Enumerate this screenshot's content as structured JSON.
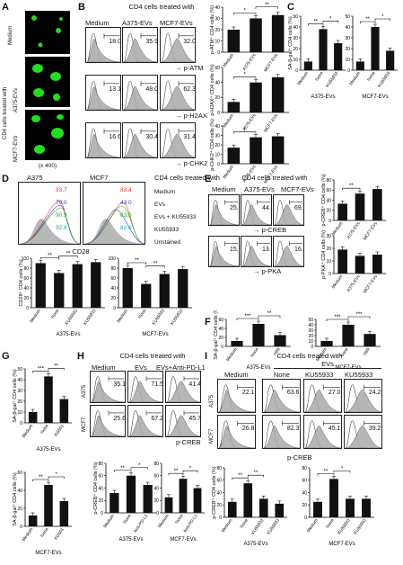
{
  "panelA": {
    "letter": "A",
    "rows": [
      "Medium",
      "CD4 cells treated with",
      "A375-EVs",
      "MCF7-EVs"
    ],
    "mag": "(x 400)"
  },
  "panelB": {
    "letter": "B",
    "title": "CD4 cells treated with",
    "cols": [
      "Medium",
      "A375-EVs",
      "MCF7-EVs"
    ],
    "rows": [
      {
        "marker": "p-ATM",
        "vals": [
          "18.0",
          "35.9",
          "32.0"
        ]
      },
      {
        "marker": "p-H2AX",
        "vals": [
          "13.1",
          "48.0",
          "62.3"
        ]
      },
      {
        "marker": "p-CHK2",
        "vals": [
          "16.6",
          "30.4",
          "31.4"
        ]
      }
    ]
  },
  "panelC": {
    "letter": "C"
  },
  "panelD": {
    "letter": "D",
    "cols": [
      "A375",
      "MCF7"
    ],
    "title": "CD4 cells treated with",
    "legend": [
      "Medium",
      "EVs",
      "EVs + KU55933",
      "KU55933",
      "Unstained"
    ],
    "a375": [
      "93.7",
      "79.0",
      "90.9",
      "92.8"
    ],
    "mcf7": [
      "83.4",
      "43.0",
      "63.5",
      "82.8"
    ],
    "xlab": "CD28"
  },
  "panelE": {
    "letter": "E",
    "title": "CD4 cells treated with",
    "cols": [
      "Medium",
      "A375-EVs",
      "MCF7-EVs"
    ],
    "rows": [
      {
        "marker": "p-CREB",
        "vals": [
          "25.8",
          "44.4",
          "69.7"
        ]
      },
      {
        "marker": "p-PKA",
        "vals": [
          "15.5",
          "13.5",
          "16.8"
        ]
      }
    ]
  },
  "panelF": {
    "letter": "F"
  },
  "panelG": {
    "letter": "G"
  },
  "panelH": {
    "letter": "H",
    "title": "CD4 cells treated with",
    "cols": [
      "Medium",
      "EVs",
      "EVs+Anti-PD-L1"
    ],
    "rows": [
      {
        "name": "A375",
        "vals": [
          "35.1",
          "71.5",
          "41.4"
        ]
      },
      {
        "name": "MCF7",
        "vals": [
          "25.6",
          "67.2",
          "45.7"
        ]
      }
    ],
    "xlab": "p-CREB"
  },
  "panelI": {
    "letter": "I",
    "title": "CD4 cells treated with",
    "evs": "EVs",
    "cols": [
      "Medium",
      "None",
      "KU55933",
      "KU55933"
    ],
    "rows": [
      {
        "name": "A375",
        "vals": [
          "22.1",
          "63.6",
          "27.0",
          "24.2"
        ]
      },
      {
        "name": "MCF7",
        "vals": [
          "26.8",
          "82.3",
          "45.1",
          "39.2"
        ]
      }
    ],
    "xlab": "p-CREB"
  },
  "chart_data": [
    {
      "panel": "B",
      "type": "bar",
      "ylabel": "p-ATM⁺ CD4 cells (%)",
      "categories": [
        "Medium",
        "A375-EVs",
        "MCF7-EVs"
      ],
      "values": [
        20,
        30,
        33
      ],
      "ylim": [
        0,
        40
      ],
      "yticks": [
        0,
        10,
        20,
        30,
        40
      ],
      "sig": [
        "*",
        "**"
      ]
    },
    {
      "panel": "B",
      "type": "bar",
      "ylabel": "p-H2AX⁺ CD4 cells (%)",
      "categories": [
        "Medium",
        "A375-EVs",
        "MCF7-EVs"
      ],
      "values": [
        14,
        40,
        47
      ],
      "ylim": [
        0,
        60
      ],
      "yticks": [
        0,
        20,
        40,
        60
      ],
      "sig": [
        "*"
      ]
    },
    {
      "panel": "B",
      "type": "bar",
      "ylabel": "p-CHK2⁺ CD4 cells (%)",
      "categories": [
        "Medium",
        "A375-EVs",
        "MCF7-EVs"
      ],
      "values": [
        17,
        28,
        29
      ],
      "ylim": [
        0,
        40
      ],
      "yticks": [
        0,
        10,
        20,
        30,
        40
      ],
      "sig": [
        "*"
      ]
    },
    {
      "panel": "C",
      "type": "bar",
      "ylabel": "SA-β-gal⁺ CD4 cells (%)",
      "group": "A375-EVs",
      "categories": [
        "Medium",
        "None",
        "KU55933"
      ],
      "values": [
        8,
        38,
        25
      ],
      "ylim": [
        0,
        50
      ],
      "yticks": [
        0,
        10,
        20,
        30,
        40,
        50
      ],
      "sig": [
        "**",
        "*"
      ]
    },
    {
      "panel": "C",
      "type": "bar",
      "ylabel": "",
      "group": "MCF7-EVs",
      "categories": [
        "Medium",
        "None",
        "KU55933"
      ],
      "values": [
        8,
        40,
        18
      ],
      "ylim": [
        0,
        50
      ],
      "yticks": [
        0,
        10,
        20,
        30,
        40,
        50
      ],
      "sig": [
        "**",
        "*"
      ]
    },
    {
      "panel": "D",
      "type": "bar",
      "ylabel": "CD28⁺ CD4 cells (%)",
      "group": "A375-EVs",
      "categories": [
        "Medium",
        "None",
        "KU55933",
        "KU55933"
      ],
      "values": [
        90,
        70,
        88,
        92
      ],
      "ylim": [
        0,
        100
      ],
      "yticks": [
        0,
        20,
        40,
        60,
        80,
        100
      ],
      "sig": [
        "**",
        "**"
      ]
    },
    {
      "panel": "D",
      "type": "bar",
      "ylabel": "",
      "group": "MCF7-EVs",
      "categories": [
        "Medium",
        "None",
        "KU55933",
        "KU55933"
      ],
      "values": [
        80,
        48,
        68,
        78
      ],
      "ylim": [
        0,
        100
      ],
      "yticks": [
        0,
        20,
        40,
        60,
        80,
        100
      ],
      "sig": [
        "**",
        "**"
      ]
    },
    {
      "panel": "E",
      "type": "bar",
      "ylabel": "p-CREB⁺ CD4 cells (%)",
      "categories": [
        "Medium",
        "A375-EVs",
        "MCF7-EVs"
      ],
      "values": [
        33,
        53,
        62
      ],
      "ylim": [
        0,
        80
      ],
      "yticks": [
        0,
        20,
        40,
        60,
        80
      ],
      "sig": [
        "**"
      ]
    },
    {
      "panel": "E",
      "type": "bar",
      "ylabel": "p-PKA⁺ CD4 cells (%)",
      "categories": [
        "Medium",
        "A375-EVs",
        "MCF7-EVs"
      ],
      "values": [
        19,
        14,
        15
      ],
      "ylim": [
        0,
        30
      ],
      "yticks": [
        0,
        10,
        20,
        30
      ],
      "sig": []
    },
    {
      "panel": "F",
      "type": "bar",
      "ylabel": "SA-β-gal⁺ CD4 cells (%)",
      "group": "A375-EVs",
      "categories": [
        "Medium",
        "None",
        "H89"
      ],
      "values": [
        12,
        50,
        25
      ],
      "ylim": [
        0,
        60
      ],
      "yticks": [
        0,
        20,
        40,
        60
      ],
      "sig": [
        "***",
        "**"
      ]
    },
    {
      "panel": "F",
      "type": "bar",
      "ylabel": "",
      "group": "MCF7-EVs",
      "categories": [
        "Medium",
        "None",
        "H89"
      ],
      "values": [
        10,
        40,
        23
      ],
      "ylim": [
        0,
        50
      ],
      "yticks": [
        0,
        10,
        20,
        30,
        40,
        50
      ],
      "sig": [
        "***",
        "***"
      ]
    },
    {
      "panel": "G",
      "type": "bar",
      "ylabel": "SA-β-gal⁺ CD4 cells (%)",
      "group": "A375-EVs",
      "categories": [
        "Medium",
        "None",
        "KG501"
      ],
      "values": [
        10,
        43,
        22
      ],
      "ylim": [
        0,
        50
      ],
      "yticks": [
        0,
        10,
        20,
        30,
        40,
        50
      ],
      "sig": [
        "***",
        "**"
      ]
    },
    {
      "panel": "G",
      "type": "bar",
      "ylabel": "SA-β-gal⁺ CD4 cells (%)",
      "group": "MCF7-EVs",
      "categories": [
        "Medium",
        "None",
        "KG501"
      ],
      "values": [
        12,
        46,
        28
      ],
      "ylim": [
        0,
        60
      ],
      "yticks": [
        0,
        20,
        40,
        60
      ],
      "sig": [
        "**",
        "*"
      ]
    },
    {
      "panel": "H",
      "type": "bar",
      "ylabel": "p-CREB⁺ CD4 cells (%)",
      "group": "A375-EVs",
      "categories": [
        "Medium",
        "None",
        "Anti-PD-L1"
      ],
      "values": [
        32,
        60,
        45
      ],
      "ylim": [
        0,
        80
      ],
      "yticks": [
        0,
        20,
        40,
        60,
        80
      ],
      "sig": [
        "**",
        "*"
      ]
    },
    {
      "panel": "H",
      "type": "bar",
      "ylabel": "",
      "group": "MCF7-EVs",
      "categories": [
        "Medium",
        "None",
        "Anti-PD-L1"
      ],
      "values": [
        25,
        55,
        40
      ],
      "ylim": [
        0,
        80
      ],
      "yticks": [
        0,
        20,
        40,
        60,
        80
      ],
      "sig": [
        "**",
        "*"
      ]
    },
    {
      "panel": "I",
      "type": "bar",
      "ylabel": "p-CREB⁺ CD4 cells (%)",
      "group": "A375-EVs",
      "categories": [
        "Medium",
        "None",
        "KU55933",
        "KU55933"
      ],
      "values": [
        25,
        55,
        30,
        22
      ],
      "ylim": [
        0,
        80
      ],
      "yticks": [
        0,
        20,
        40,
        60,
        80
      ],
      "sig": [
        "**",
        "**"
      ]
    },
    {
      "panel": "I",
      "type": "bar",
      "ylabel": "",
      "group": "MCF7-EVs",
      "categories": [
        "Medium",
        "None",
        "KU55933",
        "KU55933"
      ],
      "values": [
        25,
        62,
        30,
        30
      ],
      "ylim": [
        0,
        80
      ],
      "yticks": [
        0,
        20,
        40,
        60,
        80
      ],
      "sig": [
        "**",
        "*"
      ]
    }
  ]
}
